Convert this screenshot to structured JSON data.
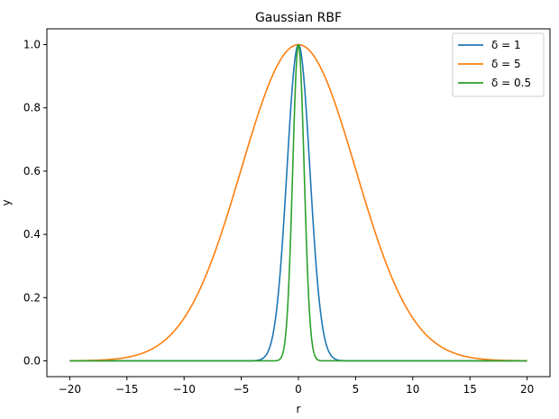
{
  "chart_data": {
    "type": "line",
    "title": "Gaussian RBF",
    "xlabel": "r",
    "ylabel": "y",
    "xlim": [
      -22,
      22
    ],
    "ylim": [
      -0.05,
      1.05
    ],
    "xticks": [
      -20,
      -15,
      -10,
      -5,
      0,
      5,
      10,
      15,
      20
    ],
    "xtick_labels": [
      "−20",
      "−15",
      "−10",
      "−5",
      "0",
      "5",
      "10",
      "15",
      "20"
    ],
    "yticks": [
      0.0,
      0.2,
      0.4,
      0.6,
      0.8,
      1.0
    ],
    "ytick_labels": [
      "0.0",
      "0.2",
      "0.4",
      "0.6",
      "0.8",
      "1.0"
    ],
    "grid": false,
    "legend_position": "top-right",
    "x_range": [
      -20,
      20
    ],
    "series": [
      {
        "name": "δ = 1",
        "delta": 1,
        "formula": "exp(-(r/delta)^2 / 2)",
        "color": "#1f77b4"
      },
      {
        "name": "δ = 5",
        "delta": 5,
        "formula": "exp(-(r/delta)^2 / 2)",
        "color": "#ff7f0e"
      },
      {
        "name": "δ = 0.5",
        "delta": 0.5,
        "formula": "exp(-(r/delta)^2 / 2)",
        "color": "#2ca02c"
      }
    ]
  }
}
